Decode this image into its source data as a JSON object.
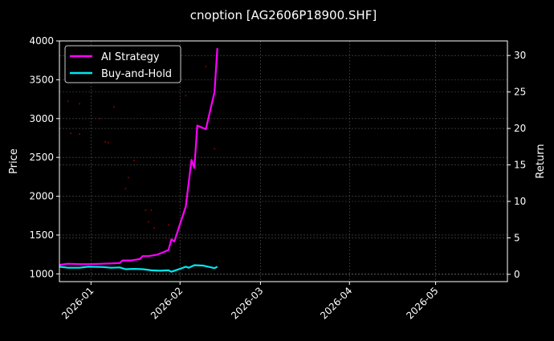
{
  "chart_data": {
    "type": "line",
    "title": "cnoption [AG2606P18900.SHF]",
    "ylabel_left": "Price",
    "ylabel_right": "Return",
    "xlim": [
      "2025-12-21",
      "2026-05-26"
    ],
    "ylim_left": [
      900,
      4000
    ],
    "ylim_right": [
      -1,
      32
    ],
    "x_ticks": [
      "2026-01",
      "2026-02",
      "2026-03",
      "2026-04",
      "2026-05"
    ],
    "y_ticks_left": [
      1000,
      1500,
      2000,
      2500,
      3000,
      3500,
      4000
    ],
    "y_ticks_right": [
      0,
      5,
      10,
      15,
      20,
      25,
      30
    ],
    "grid": true,
    "legend": {
      "placement": "top-left",
      "entries": [
        "AI Strategy",
        "Buy-and-Hold"
      ]
    },
    "colors": {
      "ai_strategy": "#ff00ff",
      "buy_and_hold": "#00e8f0",
      "price": "#8b0000",
      "background": "#000000"
    },
    "series": [
      {
        "name": "AI Strategy",
        "axis": "right",
        "points": [
          [
            "2025-12-21",
            1.3
          ],
          [
            "2025-12-24",
            1.45
          ],
          [
            "2025-12-28",
            1.4
          ],
          [
            "2026-01-01",
            1.4
          ],
          [
            "2026-01-05",
            1.45
          ],
          [
            "2026-01-08",
            1.5
          ],
          [
            "2026-01-11",
            1.55
          ],
          [
            "2026-01-12",
            1.9
          ],
          [
            "2026-01-15",
            1.9
          ],
          [
            "2026-01-18",
            2.1
          ],
          [
            "2026-01-19",
            2.5
          ],
          [
            "2026-01-21",
            2.5
          ],
          [
            "2026-01-24",
            2.7
          ],
          [
            "2026-01-26",
            3.0
          ],
          [
            "2026-01-28",
            3.35
          ],
          [
            "2026-01-29",
            4.8
          ],
          [
            "2026-01-30",
            4.5
          ],
          [
            "2026-02-03",
            9.3
          ],
          [
            "2026-02-05",
            15.7
          ],
          [
            "2026-02-06",
            14.6
          ],
          [
            "2026-02-07",
            20.4
          ],
          [
            "2026-02-10",
            19.9
          ],
          [
            "2026-02-13",
            25.0
          ],
          [
            "2026-02-14",
            31.0
          ]
        ]
      },
      {
        "name": "Buy-and-Hold",
        "axis": "right",
        "points": [
          [
            "2025-12-21",
            1.05
          ],
          [
            "2025-12-24",
            0.9
          ],
          [
            "2025-12-28",
            0.9
          ],
          [
            "2025-12-31",
            1.05
          ],
          [
            "2026-01-05",
            1.0
          ],
          [
            "2026-01-08",
            0.9
          ],
          [
            "2026-01-11",
            0.95
          ],
          [
            "2026-01-13",
            0.7
          ],
          [
            "2026-01-16",
            0.75
          ],
          [
            "2026-01-19",
            0.7
          ],
          [
            "2026-01-22",
            0.55
          ],
          [
            "2026-01-25",
            0.5
          ],
          [
            "2026-01-28",
            0.55
          ],
          [
            "2026-01-29",
            0.35
          ],
          [
            "2026-02-01",
            0.75
          ],
          [
            "2026-02-03",
            1.05
          ],
          [
            "2026-02-04",
            0.9
          ],
          [
            "2026-02-06",
            1.25
          ],
          [
            "2026-02-09",
            1.2
          ],
          [
            "2026-02-13",
            0.85
          ],
          [
            "2026-02-14",
            1.05
          ]
        ]
      },
      {
        "axis": "left",
        "style": "dots",
        "points": [
          [
            "2025-12-24",
            3224
          ],
          [
            "2025-12-25",
            2810
          ],
          [
            "2025-12-28",
            3190
          ],
          [
            "2025-12-28",
            2800
          ],
          [
            "2026-01-04",
            3000
          ],
          [
            "2026-01-06",
            2700
          ],
          [
            "2026-01-07",
            2690
          ],
          [
            "2026-01-09",
            3150
          ],
          [
            "2026-01-13",
            2100
          ],
          [
            "2026-01-14",
            2240
          ],
          [
            "2026-01-16",
            2460
          ],
          [
            "2026-01-20",
            1820
          ],
          [
            "2026-01-21",
            1670
          ],
          [
            "2026-01-22",
            1820
          ],
          [
            "2026-01-23",
            1590
          ],
          [
            "2026-01-27",
            1465
          ],
          [
            "2026-01-28",
            1630
          ],
          [
            "2026-02-03",
            3295
          ],
          [
            "2026-02-10",
            3670
          ],
          [
            "2026-02-13",
            2610
          ]
        ]
      }
    ]
  }
}
